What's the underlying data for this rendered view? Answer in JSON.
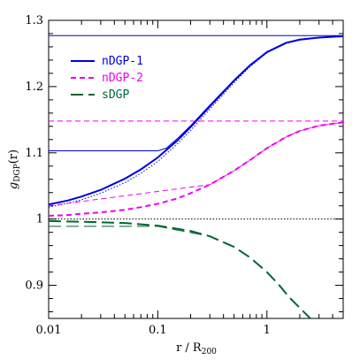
{
  "chart_data": {
    "type": "line",
    "xlabel_main": "r / R",
    "xlabel_sub": "200",
    "ylabel_main": "g",
    "ylabel_sub": "DGP",
    "ylabel_tail": "(r)",
    "xscale": "log",
    "xlim": [
      0.01,
      5
    ],
    "ylim": [
      0.85,
      1.3
    ],
    "xticks": [
      {
        "value": 0.01,
        "label": "0.01"
      },
      {
        "value": 0.1,
        "label": "0.1"
      },
      {
        "value": 1,
        "label": "1"
      }
    ],
    "yticks": [
      {
        "value": 0.9,
        "label": "0.9"
      },
      {
        "value": 1.0,
        "label": "1"
      },
      {
        "value": 1.1,
        "label": "1.1"
      },
      {
        "value": 1.2,
        "label": "1.2"
      },
      {
        "value": 1.3,
        "label": "1.3"
      }
    ],
    "grid": false,
    "legend": {
      "position": "top-left",
      "entries": [
        {
          "name": "nDGP-1",
          "color": "#0000dd",
          "dash": "solid"
        },
        {
          "name": "nDGP-2",
          "color": "#ee00ee",
          "dash": "short-dash"
        },
        {
          "name": "sDGP",
          "color": "#006633",
          "dash": "long-dash"
        }
      ]
    },
    "series": [
      {
        "name": "nDGP-1",
        "color": "#0000dd",
        "dash": "solid",
        "width": 2,
        "x": [
          0.01,
          0.015,
          0.02,
          0.03,
          0.05,
          0.07,
          0.1,
          0.15,
          0.2,
          0.3,
          0.5,
          0.7,
          1.0,
          1.5,
          2.0,
          3.0,
          5.0
        ],
        "y": [
          1.022,
          1.028,
          1.034,
          1.044,
          1.061,
          1.075,
          1.093,
          1.118,
          1.139,
          1.17,
          1.209,
          1.232,
          1.252,
          1.266,
          1.271,
          1.274,
          1.276
        ]
      },
      {
        "name": "nDGP-1 (linear)",
        "color": "#0000dd",
        "dash": "solid",
        "width": 1,
        "x": [
          0.01,
          0.1,
          0.12,
          0.15,
          0.2,
          0.3,
          0.5,
          0.7,
          1.0,
          1.5,
          2.0,
          3.0,
          5.0
        ],
        "y": [
          1.103,
          1.103,
          1.107,
          1.121,
          1.141,
          1.172,
          1.21,
          1.233,
          1.252,
          1.266,
          1.271,
          1.274,
          1.276
        ]
      },
      {
        "name": "nDGP-1 (dotted)",
        "color": "#0000dd",
        "dash": "dotted",
        "width": 1,
        "x": [
          0.01,
          0.015,
          0.02,
          0.03,
          0.05,
          0.07,
          0.1,
          0.15,
          0.2,
          0.3,
          0.5,
          0.7,
          1.0,
          1.5,
          2.0,
          3.0,
          5.0
        ],
        "y": [
          1.018,
          1.024,
          1.029,
          1.039,
          1.055,
          1.069,
          1.087,
          1.113,
          1.134,
          1.166,
          1.206,
          1.23,
          1.251,
          1.265,
          1.27,
          1.274,
          1.276
        ]
      },
      {
        "name": "nDGP-1 (asymptote)",
        "color": "#0000dd",
        "dash": "solid",
        "width": 1,
        "x": [
          0.01,
          5.0
        ],
        "y": [
          1.277,
          1.277
        ]
      },
      {
        "name": "nDGP-2",
        "color": "#ee00ee",
        "dash": "short-dash",
        "width": 2,
        "x": [
          0.01,
          0.015,
          0.02,
          0.03,
          0.05,
          0.07,
          0.1,
          0.15,
          0.2,
          0.3,
          0.5,
          0.7,
          1.0,
          1.5,
          2.0,
          3.0,
          5.0
        ],
        "y": [
          1.005,
          1.006,
          1.008,
          1.01,
          1.014,
          1.018,
          1.023,
          1.031,
          1.039,
          1.052,
          1.073,
          1.089,
          1.107,
          1.124,
          1.133,
          1.141,
          1.146
        ]
      },
      {
        "name": "nDGP-2 (linear)",
        "color": "#ee00ee",
        "dash": "short-dash",
        "width": 1,
        "x": [
          0.01,
          0.3,
          0.5,
          0.7,
          1.0,
          1.5,
          2.0,
          3.0,
          5.0
        ],
        "y": [
          1.02,
          1.052,
          1.073,
          1.089,
          1.107,
          1.124,
          1.133,
          1.141,
          1.146
        ]
      },
      {
        "name": "nDGP-2 (asymptote)",
        "color": "#ee00ee",
        "dash": "short-dash",
        "width": 1,
        "x": [
          0.01,
          5.0
        ],
        "y": [
          1.148,
          1.148
        ]
      },
      {
        "name": "unity",
        "color": "#000000",
        "dash": "dotted",
        "width": 1,
        "x": [
          0.01,
          5.0
        ],
        "y": [
          1.0,
          1.0
        ]
      },
      {
        "name": "sDGP",
        "color": "#006633",
        "dash": "long-dash",
        "width": 2,
        "x": [
          0.01,
          0.02,
          0.05,
          0.1,
          0.2,
          0.3,
          0.5,
          0.7,
          1.0,
          1.3,
          1.6,
          2.0,
          2.5
        ],
        "y": [
          0.997,
          0.996,
          0.994,
          0.99,
          0.982,
          0.974,
          0.958,
          0.942,
          0.92,
          0.9,
          0.882,
          0.866,
          0.85
        ]
      },
      {
        "name": "sDGP (linear)",
        "color": "#006633",
        "dash": "long-dash",
        "width": 1,
        "x": [
          0.01,
          0.1,
          0.3,
          0.5
        ],
        "y": [
          0.989,
          0.989,
          0.974,
          0.958
        ]
      }
    ]
  }
}
